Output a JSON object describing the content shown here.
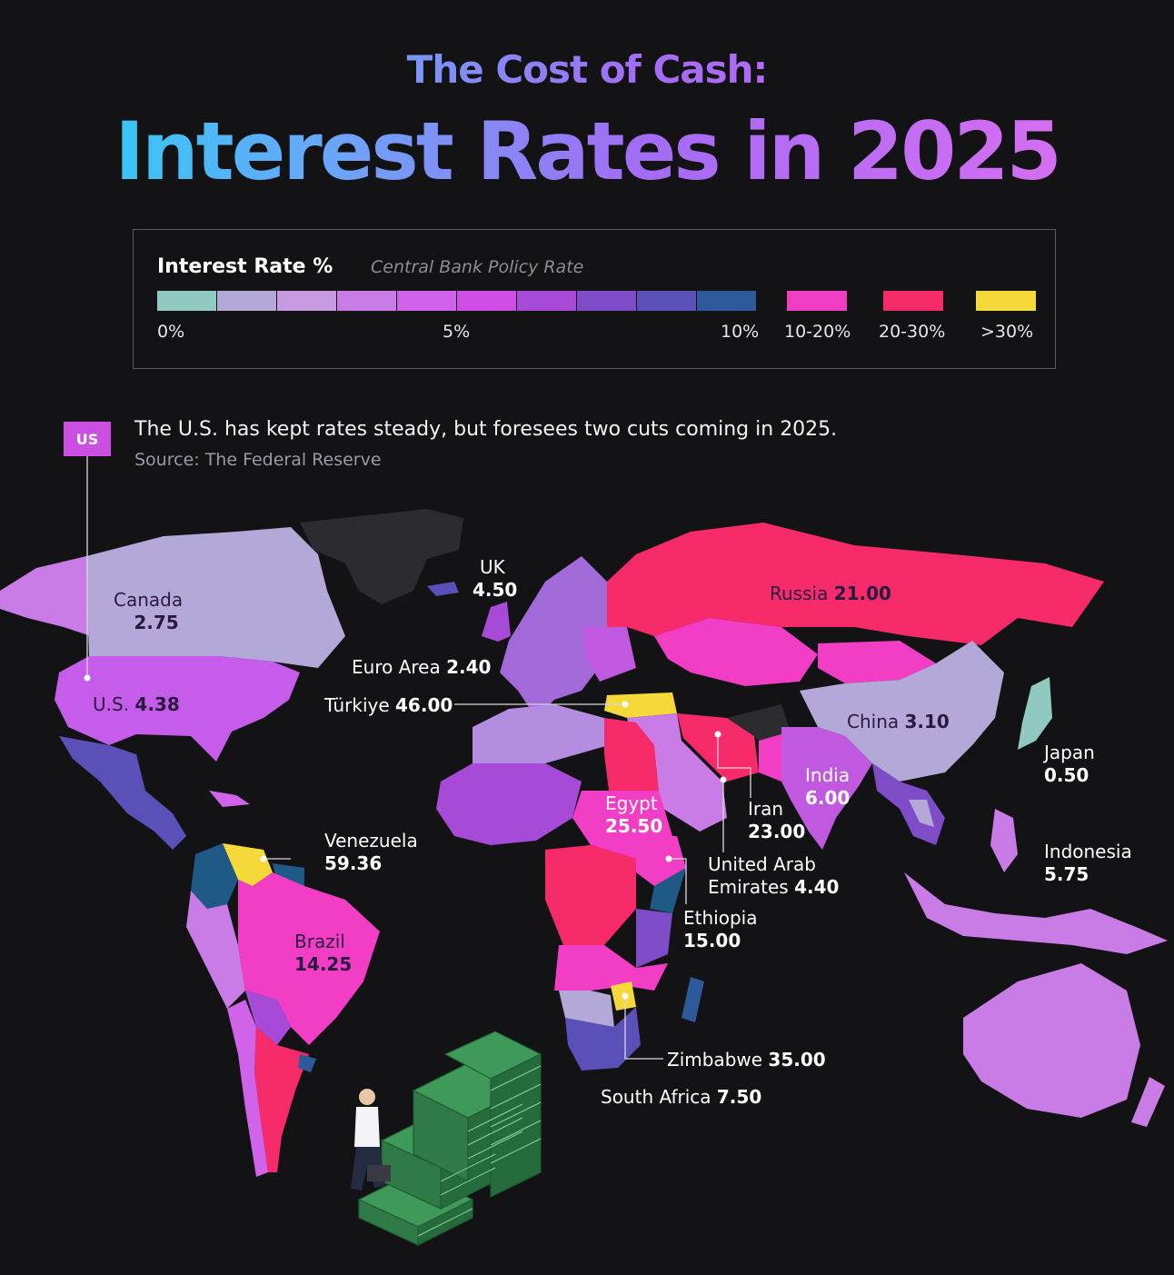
{
  "title": {
    "line1": "The Cost of Cash:",
    "line2": "Interest Rates in 2025"
  },
  "legend": {
    "heading": "Interest Rate %",
    "subheading": "Central Bank Policy Rate",
    "scale_colors": [
      "#8fc9c0",
      "#b4a8d8",
      "#c59ae0",
      "#c97be6",
      "#d063ea",
      "#cf4fe6",
      "#a84ad8",
      "#7f4cc8",
      "#5a50b8",
      "#2e5a9c",
      "#1f5a86"
    ],
    "scale_labels": {
      "min": "0%",
      "mid": "5%",
      "max": "10%"
    },
    "buckets": [
      {
        "label": "10-20%",
        "color": "#f23ec4"
      },
      {
        "label": "20-30%",
        "color": "#f72a6a"
      },
      {
        "label": ">30%",
        "color": "#f5d93a"
      }
    ]
  },
  "annotation": {
    "tag": "US",
    "text": "The U.S. has kept rates steady, but foresees two cuts coming in 2025.",
    "source": "Source: The Federal Reserve"
  },
  "countries": [
    {
      "name": "Canada",
      "rate": "2.75"
    },
    {
      "name": "U.S.",
      "rate": "4.38"
    },
    {
      "name": "UK",
      "rate": "4.50"
    },
    {
      "name": "Euro Area",
      "rate": "2.40"
    },
    {
      "name": "Türkiye",
      "rate": "46.00"
    },
    {
      "name": "Russia",
      "rate": "21.00"
    },
    {
      "name": "China",
      "rate": "3.10"
    },
    {
      "name": "Japan",
      "rate": "0.50"
    },
    {
      "name": "India",
      "rate": "6.00"
    },
    {
      "name": "Iran",
      "rate": "23.00"
    },
    {
      "name": "Egypt",
      "rate": "25.50"
    },
    {
      "name": "Venezuela",
      "rate": "59.36"
    },
    {
      "name": "Brazil",
      "rate": "14.25"
    },
    {
      "name": "United Arab Emirates",
      "name_lines": [
        "United Arab",
        "Emirates"
      ],
      "rate": "4.40"
    },
    {
      "name": "Ethiopia",
      "rate": "15.00"
    },
    {
      "name": "Indonesia",
      "rate": "5.75"
    },
    {
      "name": "Zimbabwe",
      "rate": "35.00"
    },
    {
      "name": "South Africa",
      "rate": "7.50"
    }
  ]
}
